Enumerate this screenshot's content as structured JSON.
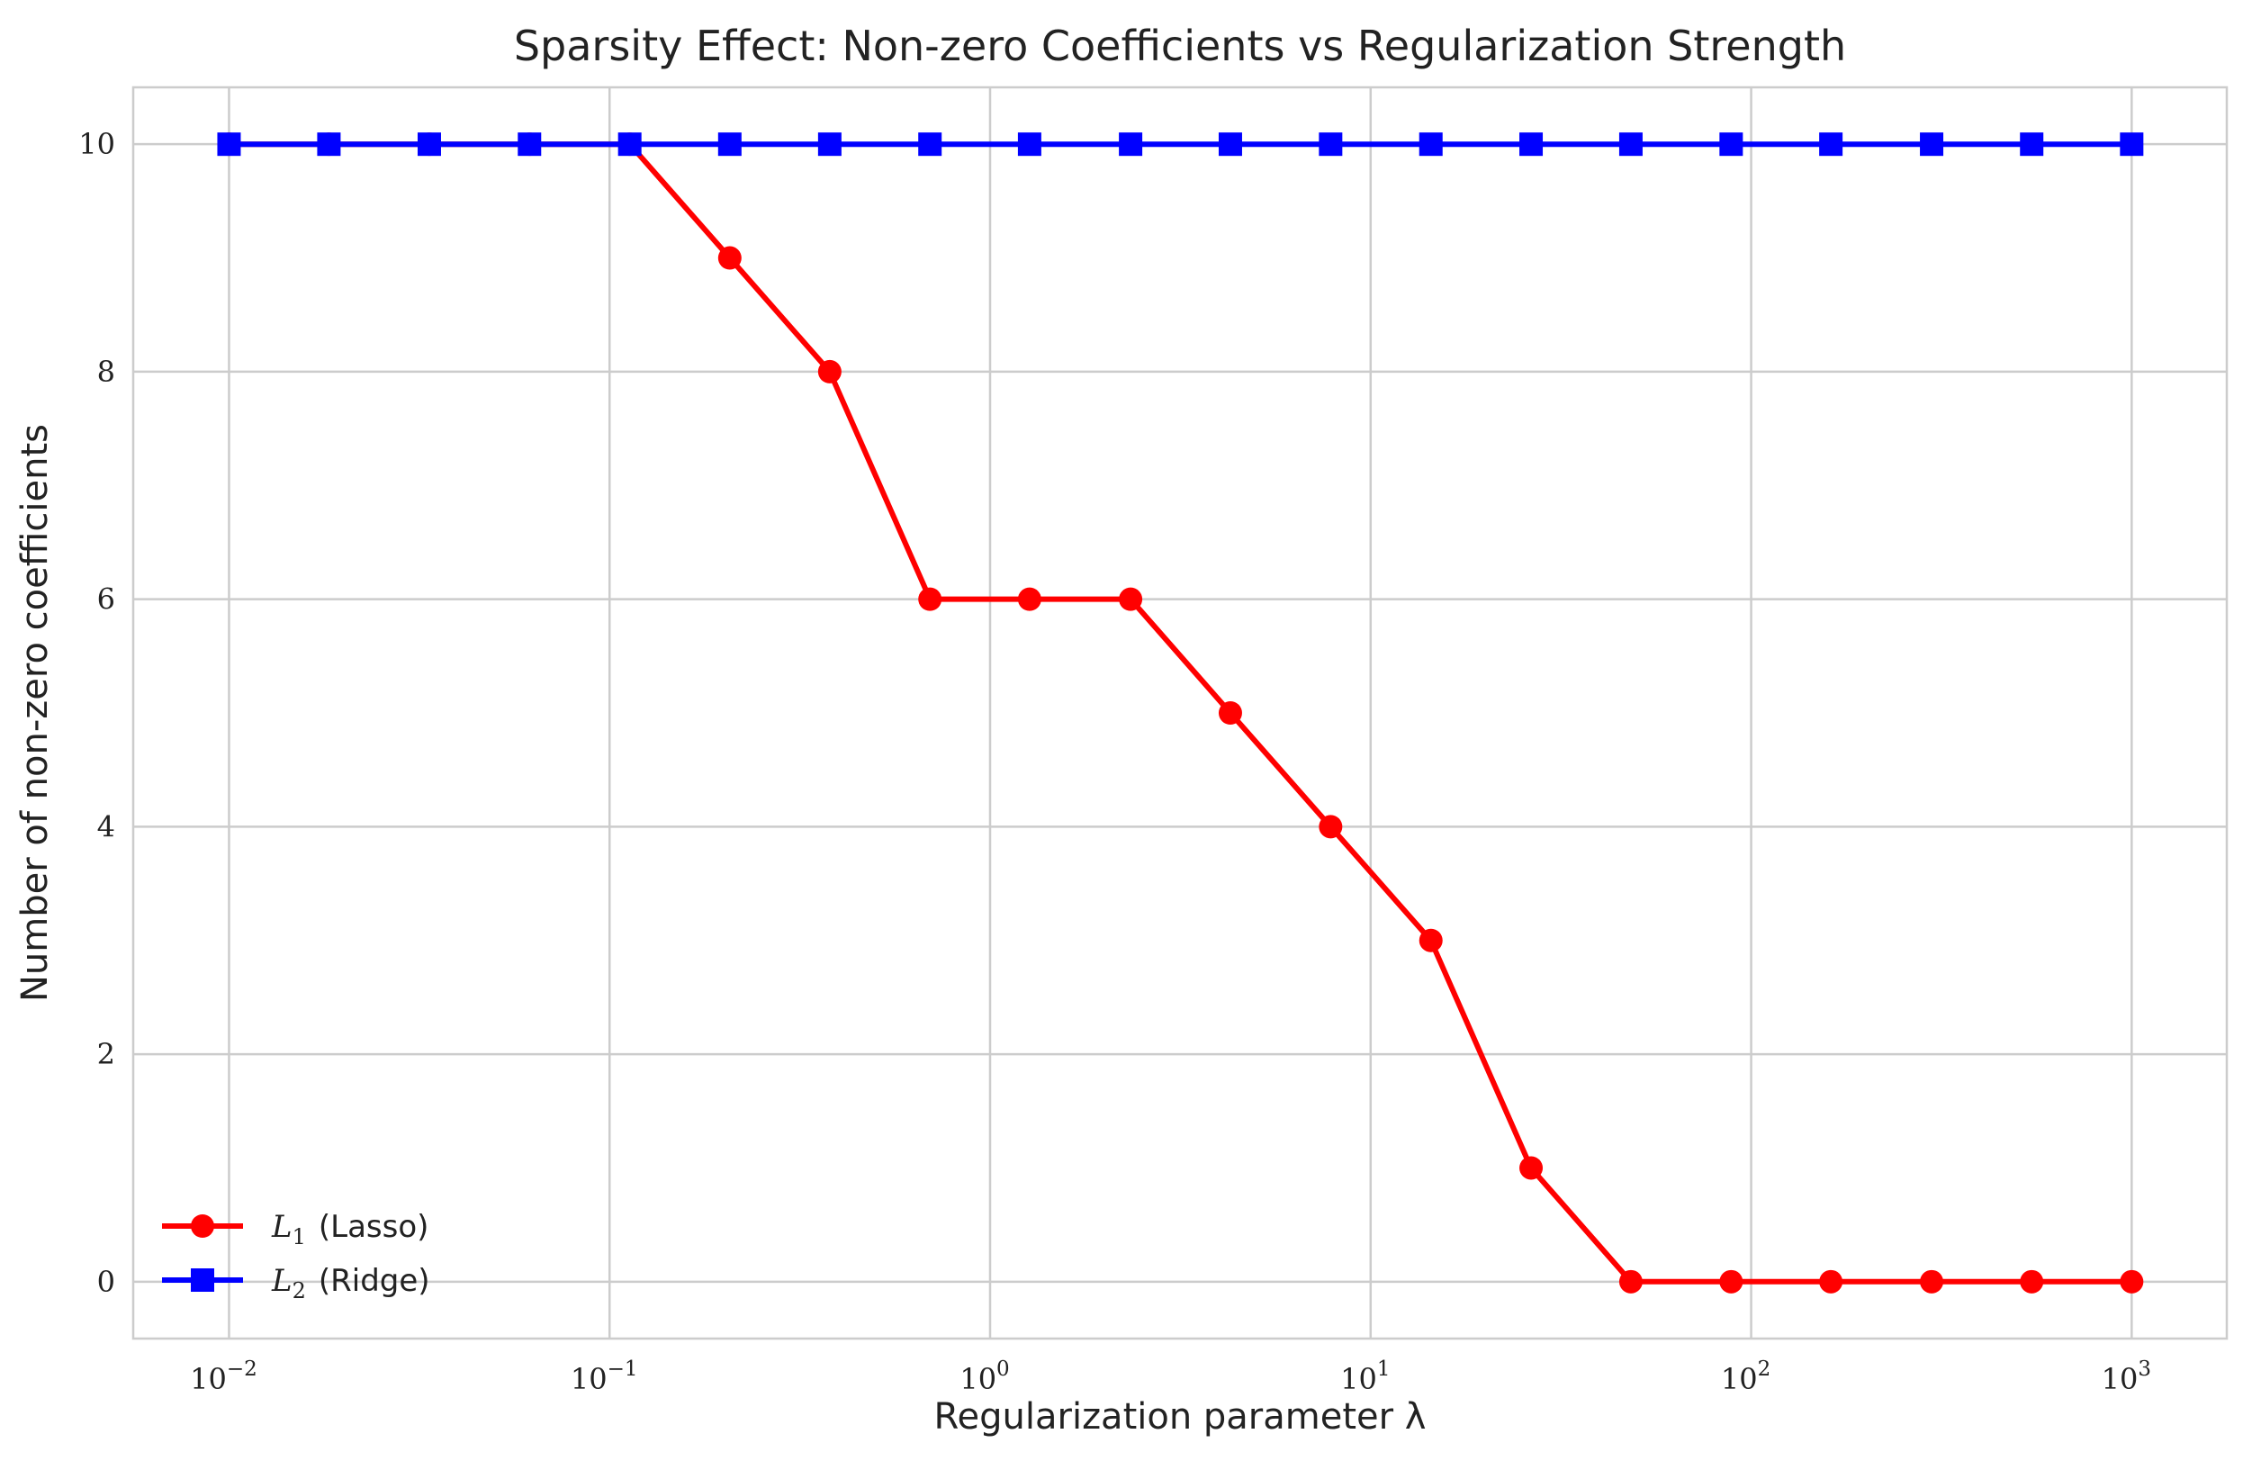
{
  "chart_data": {
    "type": "line",
    "title": "Sparsity Effect: Non-zero Coefficients vs Regularization Strength",
    "xlabel": "Regularization parameter λ",
    "ylabel": "Number of non-zero coefficients",
    "x_scale": "log",
    "xlim": [
      0.0056,
      1778
    ],
    "ylim": [
      -0.5,
      10.5
    ],
    "x_ticks": [
      {
        "base": "10",
        "exp": "−2",
        "value": 0.01
      },
      {
        "base": "10",
        "exp": "−1",
        "value": 0.1
      },
      {
        "base": "10",
        "exp": "0",
        "value": 1
      },
      {
        "base": "10",
        "exp": "1",
        "value": 10
      },
      {
        "base": "10",
        "exp": "2",
        "value": 100
      },
      {
        "base": "10",
        "exp": "3",
        "value": 1000
      }
    ],
    "y_ticks": [
      0,
      2,
      4,
      6,
      8,
      10
    ],
    "grid": true,
    "legend_position": "lower-left",
    "x": [
      0.01,
      0.0183,
      0.0336,
      0.0616,
      0.113,
      0.207,
      0.379,
      0.695,
      1.27,
      2.34,
      4.28,
      7.85,
      14.4,
      26.4,
      48.3,
      88.6,
      162,
      298,
      546,
      1000
    ],
    "series": [
      {
        "name": "(Lasso)",
        "math_symbol": "L",
        "math_sub": "1",
        "color": "#ff0000",
        "marker": "circle",
        "values": [
          10,
          10,
          10,
          10,
          10,
          9,
          8,
          6,
          6,
          6,
          5,
          4,
          3,
          1,
          0,
          0,
          0,
          0,
          0,
          0
        ]
      },
      {
        "name": "(Ridge)",
        "math_symbol": "L",
        "math_sub": "2",
        "color": "#0000ff",
        "marker": "square",
        "values": [
          10,
          10,
          10,
          10,
          10,
          10,
          10,
          10,
          10,
          10,
          10,
          10,
          10,
          10,
          10,
          10,
          10,
          10,
          10,
          10
        ]
      }
    ]
  }
}
